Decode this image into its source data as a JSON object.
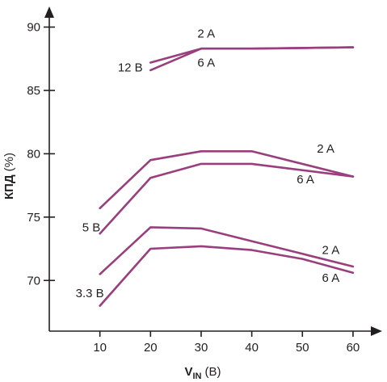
{
  "chart_data": {
    "type": "line",
    "xlabel_main": "V",
    "xlabel_sub": "IN",
    "xlabel_unit": "(В)",
    "ylabel_main": "КПД",
    "ylabel_unit": "(%)",
    "xlim": [
      0,
      64
    ],
    "ylim": [
      66,
      91.5
    ],
    "xticks": [
      10,
      20,
      30,
      40,
      50,
      60
    ],
    "yticks": [
      70,
      75,
      80,
      85,
      90
    ],
    "grid": false,
    "line_color": "#9a3f7d",
    "axis_color": "#231f20",
    "groups": [
      {
        "label": "12 В",
        "series": [
          {
            "name": "2 A",
            "points": [
              [
                20,
                87.2
              ],
              [
                30,
                88.3
              ],
              [
                40,
                88.3
              ],
              [
                60,
                88.4
              ]
            ]
          },
          {
            "name": "6 A",
            "points": [
              [
                20,
                86.6
              ],
              [
                30,
                88.3
              ],
              [
                40,
                88.3
              ],
              [
                60,
                88.4
              ]
            ]
          }
        ]
      },
      {
        "label": "5 В",
        "series": [
          {
            "name": "2 A",
            "points": [
              [
                10,
                75.7
              ],
              [
                20,
                79.5
              ],
              [
                30,
                80.2
              ],
              [
                40,
                80.2
              ],
              [
                60,
                78.2
              ]
            ]
          },
          {
            "name": "6 A",
            "points": [
              [
                10,
                73.7
              ],
              [
                20,
                78.1
              ],
              [
                30,
                79.2
              ],
              [
                40,
                79.2
              ],
              [
                60,
                78.2
              ]
            ]
          }
        ]
      },
      {
        "label": "3.3 В",
        "series": [
          {
            "name": "2 A",
            "points": [
              [
                10,
                70.5
              ],
              [
                20,
                74.2
              ],
              [
                30,
                74.1
              ],
              [
                40,
                73.1
              ],
              [
                50,
                72.1
              ],
              [
                60,
                71.1
              ]
            ]
          },
          {
            "name": "6 A",
            "points": [
              [
                10,
                68.0
              ],
              [
                20,
                72.5
              ],
              [
                30,
                72.7
              ],
              [
                40,
                72.4
              ],
              [
                50,
                71.7
              ],
              [
                60,
                70.6
              ]
            ]
          }
        ]
      }
    ],
    "annotations": [
      {
        "text": "2 A",
        "x": 31,
        "y": 89.5
      },
      {
        "text": "6 A",
        "x": 31,
        "y": 87.2
      },
      {
        "text": "12 В",
        "x": 16,
        "y": 86.8
      },
      {
        "text": "2 A",
        "x": 54.6,
        "y": 80.4
      },
      {
        "text": "6 A",
        "x": 50.6,
        "y": 78.0
      },
      {
        "text": "5 В",
        "x": 8.3,
        "y": 74.2
      },
      {
        "text": "2 A",
        "x": 55.6,
        "y": 72.4
      },
      {
        "text": "6 A",
        "x": 55.6,
        "y": 70.2
      },
      {
        "text": "3.3 В",
        "x": 8.0,
        "y": 69.0
      }
    ]
  }
}
